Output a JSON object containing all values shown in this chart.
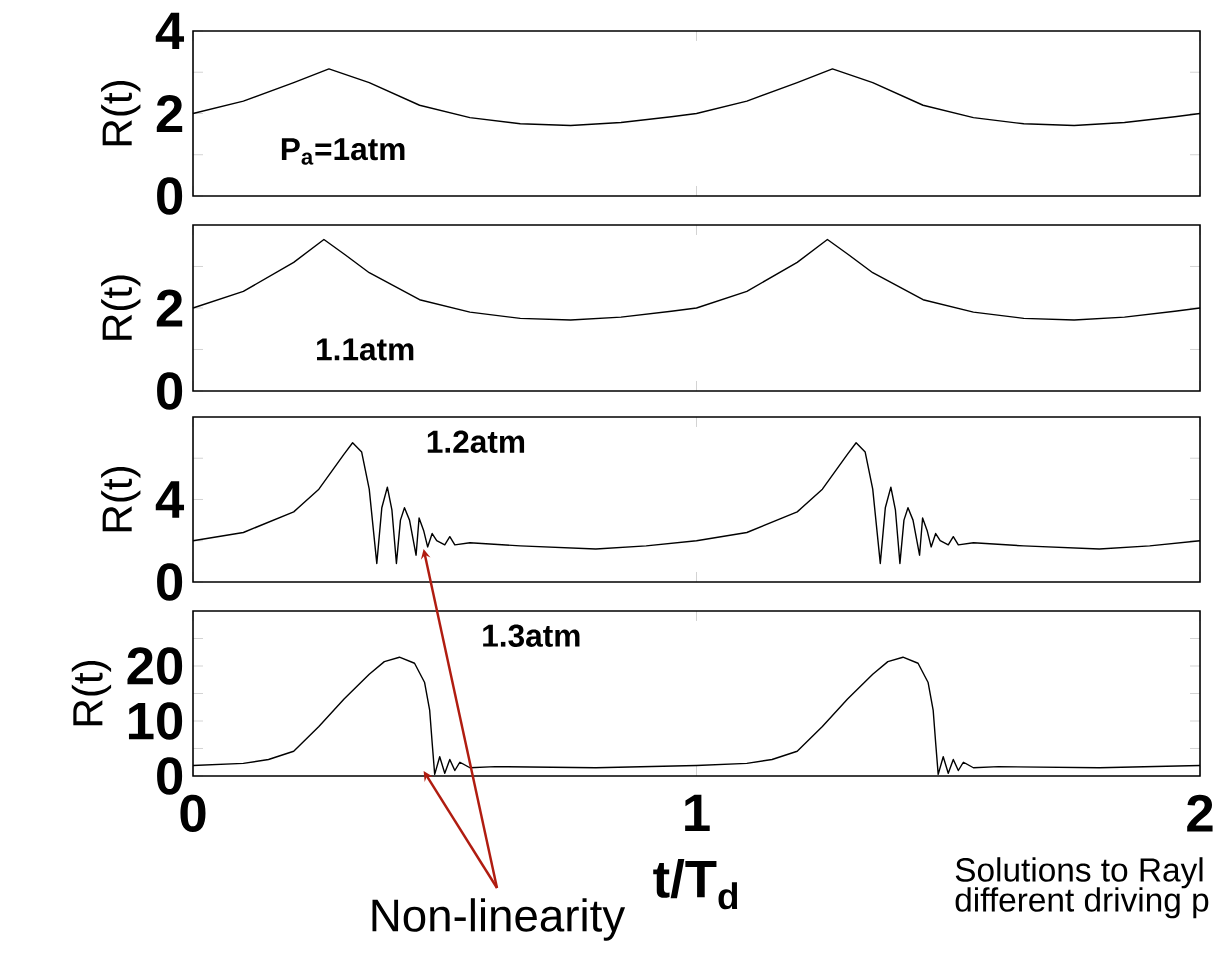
{
  "chart_data": [
    {
      "type": "line",
      "ylabel": "R(t)",
      "xlim": [
        0,
        2
      ],
      "xticks": [
        0,
        1,
        2
      ],
      "ylim": [
        0,
        4
      ],
      "yticks": [
        0,
        {
          "value": 1,
          "label": null
        },
        2,
        {
          "value": 3,
          "label": null
        },
        4
      ],
      "tick_labels": "y",
      "annotations": [
        "P$_{a}$=1atm"
      ],
      "x": [
        0,
        0.1,
        0.2,
        0.27,
        0.35,
        0.45,
        0.55,
        0.65,
        0.75,
        0.85,
        0.95,
        1.0,
        1.1,
        1.2,
        1.27,
        1.35,
        1.45,
        1.55,
        1.65,
        1.75,
        1.85,
        1.95,
        2.0
      ],
      "series": [
        {
          "color": "#000000",
          "values": [
            2,
            2.3,
            2.75,
            3.08,
            2.75,
            2.2,
            1.9,
            1.75,
            1.71,
            1.78,
            1.92,
            2.0,
            2.3,
            2.75,
            3.08,
            2.75,
            2.2,
            1.9,
            1.75,
            1.71,
            1.78,
            1.92,
            2.0
          ]
        }
      ]
    },
    {
      "type": "line",
      "ylabel": "R(t)",
      "xlim": [
        0,
        2
      ],
      "xticks": [
        0,
        1,
        2
      ],
      "ylim": [
        0,
        4
      ],
      "yticks": [
        0,
        {
          "value": 1,
          "label": null
        },
        2,
        {
          "value": 3,
          "label": null
        }
      ],
      "tick_labels": "y",
      "annotations": [
        "1.1atm"
      ],
      "x": [
        0,
        0.1,
        0.2,
        0.26,
        0.3,
        0.35,
        0.45,
        0.55,
        0.65,
        0.75,
        0.85,
        0.95,
        1.0,
        1.1,
        1.2,
        1.26,
        1.3,
        1.35,
        1.45,
        1.55,
        1.65,
        1.75,
        1.85,
        1.95,
        2.0
      ],
      "series": [
        {
          "color": "#000000",
          "values": [
            2,
            2.4,
            3.1,
            3.65,
            3.3,
            2.85,
            2.2,
            1.9,
            1.75,
            1.71,
            1.78,
            1.92,
            2.0,
            2.4,
            3.1,
            3.65,
            3.3,
            2.85,
            2.2,
            1.9,
            1.75,
            1.71,
            1.78,
            1.92,
            2.0
          ]
        }
      ]
    },
    {
      "type": "line",
      "ylabel": "R(t)",
      "xlim": [
        0,
        2
      ],
      "xticks": [
        0,
        1,
        2
      ],
      "ylim": [
        0,
        8
      ],
      "yticks": [
        0,
        {
          "value": 2,
          "label": null
        },
        4,
        {
          "value": 6,
          "label": null
        }
      ],
      "tick_labels": "y",
      "annotations": [
        "1.2atm",
        {
          "text": "Non-linearity",
          "x": 0.458,
          "y": 1.6
        }
      ],
      "x": [
        0,
        0.1,
        0.2,
        0.25,
        0.3,
        0.317,
        0.335,
        0.35,
        0.365,
        0.375,
        0.386,
        0.395,
        0.404,
        0.412,
        0.42,
        0.43,
        0.443,
        0.449,
        0.458,
        0.466,
        0.475,
        0.484,
        0.5,
        0.51,
        0.52,
        0.55,
        0.65,
        0.8,
        0.9,
        1.0,
        1.1,
        1.2,
        1.25,
        1.3,
        1.317,
        1.335,
        1.35,
        1.365,
        1.375,
        1.386,
        1.395,
        1.404,
        1.412,
        1.42,
        1.43,
        1.443,
        1.449,
        1.458,
        1.466,
        1.475,
        1.484,
        1.5,
        1.51,
        1.52,
        1.55,
        1.65,
        1.8,
        1.9,
        2.0
      ],
      "series": [
        {
          "color": "#000000",
          "values": [
            2,
            2.4,
            3.4,
            4.5,
            6.2,
            6.75,
            6.3,
            4.5,
            0.9,
            3.6,
            4.6,
            3.5,
            0.9,
            3.0,
            3.6,
            3.0,
            1.3,
            3.1,
            2.5,
            1.7,
            2.35,
            2.0,
            1.8,
            2.2,
            1.8,
            1.9,
            1.75,
            1.6,
            1.75,
            2,
            2.4,
            3.4,
            4.5,
            6.2,
            6.75,
            6.3,
            4.5,
            0.9,
            3.6,
            4.6,
            3.5,
            0.9,
            3.0,
            3.6,
            3.0,
            1.3,
            3.1,
            2.5,
            1.7,
            2.35,
            2.0,
            1.8,
            2.2,
            1.8,
            1.9,
            1.75,
            1.6,
            1.75,
            2.0
          ]
        }
      ]
    },
    {
      "type": "line",
      "ylabel": "R(t)",
      "xlabel": "t/T$_{d}$",
      "xlim": [
        0,
        2
      ],
      "xticks": [
        0,
        1,
        2
      ],
      "ylim": [
        0,
        30
      ],
      "yticks": [
        0,
        {
          "value": 5,
          "label": null
        },
        10,
        {
          "value": 15,
          "label": null
        },
        20,
        {
          "value": 25,
          "label": null
        }
      ],
      "annotations": [
        "1.3atm",
        "Solutions to Rayl",
        "different driving p"
      ],
      "x": [
        0,
        0.1,
        0.15,
        0.2,
        0.25,
        0.3,
        0.35,
        0.38,
        0.41,
        0.44,
        0.46,
        0.47,
        0.475,
        0.48,
        0.49,
        0.5,
        0.51,
        0.52,
        0.53,
        0.55,
        0.6,
        0.8,
        1.0,
        1.1,
        1.15,
        1.2,
        1.25,
        1.3,
        1.35,
        1.38,
        1.41,
        1.44,
        1.46,
        1.47,
        1.475,
        1.48,
        1.49,
        1.5,
        1.51,
        1.52,
        1.53,
        1.55,
        1.6,
        1.8,
        2.0
      ],
      "series": [
        {
          "color": "#000000",
          "values": [
            1.9,
            2.3,
            3,
            4.5,
            9,
            14,
            18.5,
            20.8,
            21.6,
            20.5,
            17,
            12,
            6,
            0.3,
            3.5,
            0.5,
            3,
            1,
            2.5,
            1.5,
            1.7,
            1.5,
            1.9,
            2.3,
            3,
            4.5,
            9,
            14,
            18.5,
            20.8,
            21.6,
            20.5,
            17,
            12,
            6,
            0.3,
            3.5,
            0.5,
            3,
            1,
            2.5,
            1.5,
            1.7,
            1.5,
            1.9
          ]
        }
      ]
    }
  ]
}
